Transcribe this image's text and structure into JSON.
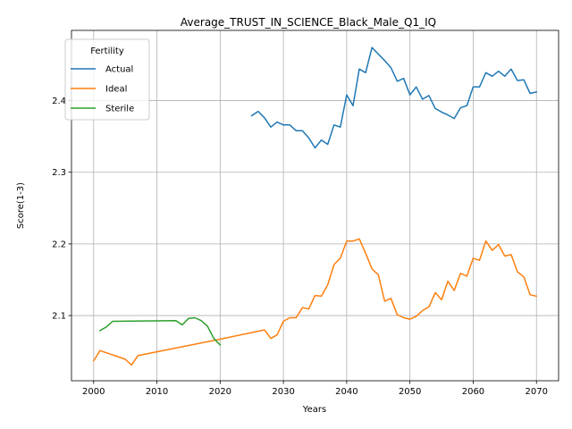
{
  "chart_data": {
    "type": "line",
    "title": "Average_TRUST_IN_SCIENCE_Black_Male_Q1_IQ",
    "xlabel": "Years",
    "ylabel": "Score(1-3)",
    "xlim": [
      1996.5,
      2073.5
    ],
    "ylim": [
      2.009,
      2.498
    ],
    "xticks": [
      2000,
      2010,
      2020,
      2030,
      2040,
      2050,
      2060,
      2070
    ],
    "yticks": [
      2.1,
      2.2,
      2.3,
      2.4
    ],
    "grid": true,
    "legend": {
      "title": "Fertility",
      "placement": "top-left"
    },
    "series": [
      {
        "name": "Actual",
        "color": "#1f77b4",
        "x": [
          2025,
          2026,
          2027,
          2028,
          2029,
          2030,
          2031,
          2032,
          2033,
          2034,
          2035,
          2036,
          2037,
          2038,
          2039,
          2040,
          2041,
          2042,
          2043,
          2044,
          2045,
          2046,
          2047,
          2048,
          2049,
          2050,
          2051,
          2052,
          2053,
          2054,
          2055,
          2056,
          2057,
          2058,
          2059,
          2060,
          2061,
          2062,
          2063,
          2064,
          2065,
          2066,
          2067,
          2068,
          2069,
          2070
        ],
        "y": [
          2.379,
          2.385,
          2.376,
          2.363,
          2.37,
          2.366,
          2.366,
          2.358,
          2.358,
          2.348,
          2.334,
          2.345,
          2.339,
          2.366,
          2.363,
          2.408,
          2.393,
          2.444,
          2.439,
          2.474,
          2.465,
          2.456,
          2.446,
          2.427,
          2.431,
          2.408,
          2.419,
          2.402,
          2.407,
          2.389,
          2.384,
          2.38,
          2.375,
          2.39,
          2.393,
          2.419,
          2.419,
          2.439,
          2.434,
          2.441,
          2.434,
          2.444,
          2.428,
          2.429,
          2.41,
          2.412
        ]
      },
      {
        "name": "Ideal",
        "color": "#ff7f0e",
        "x": [
          2000,
          2001,
          2002,
          2003,
          2004,
          2005,
          2006,
          2007,
          2020,
          2027,
          2028,
          2029,
          2030,
          2031,
          2032,
          2033,
          2034,
          2035,
          2036,
          2037,
          2038,
          2039,
          2040,
          2041,
          2042,
          2043,
          2044,
          2045,
          2046,
          2047,
          2048,
          2049,
          2050,
          2051,
          2052,
          2053,
          2054,
          2055,
          2056,
          2057,
          2058,
          2059,
          2060,
          2061,
          2062,
          2063,
          2064,
          2065,
          2066,
          2067,
          2068,
          2069,
          2070
        ],
        "y": [
          2.037,
          2.051,
          2.048,
          2.045,
          2.042,
          2.039,
          2.031,
          2.044,
          2.067,
          2.08,
          2.068,
          2.073,
          2.092,
          2.097,
          2.097,
          2.111,
          2.109,
          2.128,
          2.127,
          2.143,
          2.171,
          2.18,
          2.204,
          2.204,
          2.207,
          2.187,
          2.165,
          2.157,
          2.12,
          2.124,
          2.101,
          2.097,
          2.095,
          2.099,
          2.107,
          2.112,
          2.132,
          2.122,
          2.148,
          2.135,
          2.159,
          2.155,
          2.18,
          2.177,
          2.204,
          2.191,
          2.199,
          2.183,
          2.185,
          2.161,
          2.154,
          2.129,
          2.127
        ]
      },
      {
        "name": "Sterile",
        "color": "#2ca02c",
        "x": [
          2001,
          2002,
          2003,
          2013,
          2014,
          2015,
          2016,
          2017,
          2018,
          2019,
          2020
        ],
        "y": [
          2.079,
          2.084,
          2.092,
          2.093,
          2.087,
          2.096,
          2.097,
          2.093,
          2.085,
          2.068,
          2.059
        ]
      }
    ]
  }
}
